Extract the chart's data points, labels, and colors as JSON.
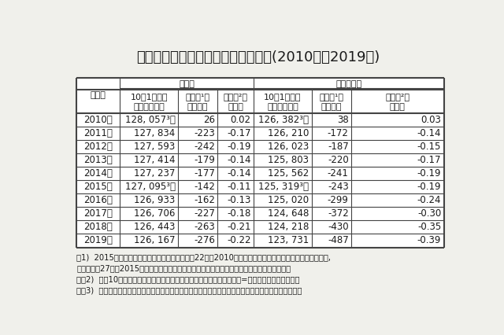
{
  "title": "表１　総人口及び日本人人口の推移(2010年～2019年)",
  "rows": [
    [
      "2010年",
      "128, 057³）",
      "26",
      "0.02",
      "126, 382³）",
      "38",
      "0.03"
    ],
    [
      "2011年",
      "127, 834",
      "-223",
      "-0.17",
      "126, 210",
      "-172",
      "-0.14"
    ],
    [
      "2012年",
      "127, 593",
      "-242",
      "-0.19",
      "126, 023",
      "-187",
      "-0.15"
    ],
    [
      "2013年",
      "127, 414",
      "-179",
      "-0.14",
      "125, 803",
      "-220",
      "-0.17"
    ],
    [
      "2014年",
      "127, 237",
      "-177",
      "-0.14",
      "125, 562",
      "-241",
      "-0.19"
    ],
    [
      "2015年",
      "127, 095³）",
      "-142",
      "-0.11",
      "125, 319³）",
      "-243",
      "-0.19"
    ],
    [
      "2016年",
      "126, 933",
      "-162",
      "-0.13",
      "125, 020",
      "-299",
      "-0.24"
    ],
    [
      "2017年",
      "126, 706",
      "-227",
      "-0.18",
      "124, 648",
      "-372",
      "-0.30"
    ],
    [
      "2018年",
      "126, 443",
      "-263",
      "-0.21",
      "124, 218",
      "-430",
      "-0.35"
    ],
    [
      "2019年",
      "126, 167",
      "-276",
      "-0.22",
      "123, 731",
      "-487",
      "-0.39"
    ]
  ],
  "header1_year": "年　次",
  "header1_total": "総人口",
  "header1_jpn": "日本人人口",
  "header2_pop": "10月1日現在\n人口（千人）",
  "header2_inc": "増減数¹）\n（千人）",
  "header2_rate": "増減率²）\n（％）",
  "fn1a": "注1)  2015年までの増減数には補間補正数（平成22年（2010年）国勢調査人口を基に算出した人口推計と,",
  "fn1b": "　　　平成27年（2015年）国勢調査人口との差を各年に均等配分して算出したもの）を含む。",
  "fn2": "　　2)  前年10月から当年）月までの増減数を前年人口（期間初めの人口=期首人口）で除したもの",
  "fn3": "　　3)  国勢調査人口。日本人人口は，総人口に対する日本人人口の割合であん分した国籍不詳を含む。",
  "bg_color": "#f0f0eb",
  "table_bg": "#ffffff",
  "text_color": "#1a1a1a",
  "border_color": "#444444"
}
